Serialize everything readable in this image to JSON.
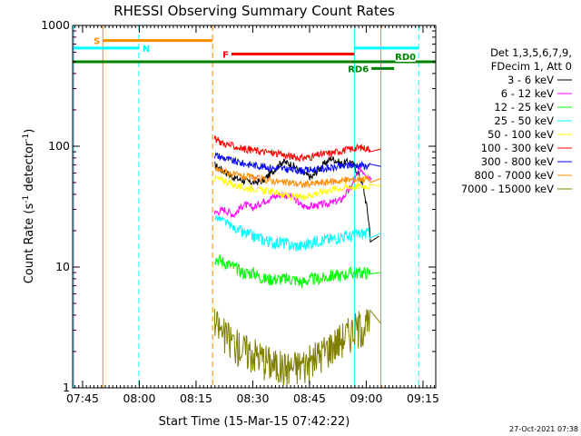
{
  "chart_data": {
    "type": "line",
    "title": "RHESSI Observing Summary Count Rates",
    "xlabel": "Start Time (15-Mar-15 07:42:22)",
    "ylabel_main": "Count Rate (s",
    "ylabel_sup": "-1",
    "ylabel_mid": " detector",
    "ylabel_sup2": "-1",
    "ylabel_end": ")",
    "yscale": "log",
    "ylim": [
      1,
      1000
    ],
    "xlim_minutes": [
      0,
      96
    ],
    "x_ticks": [
      {
        "min": 2.63,
        "label": "07:45"
      },
      {
        "min": 17.63,
        "label": "08:00"
      },
      {
        "min": 32.63,
        "label": "08:15"
      },
      {
        "min": 47.63,
        "label": "08:30"
      },
      {
        "min": 62.63,
        "label": "08:45"
      },
      {
        "min": 77.63,
        "label": "09:00"
      },
      {
        "min": 92.63,
        "label": "09:15"
      }
    ],
    "y_ticks": [
      {
        "value": 1,
        "label": "1"
      },
      {
        "value": 10,
        "label": "10"
      },
      {
        "value": 100,
        "label": "100"
      },
      {
        "value": 1000,
        "label": "1000"
      }
    ],
    "legend_header": [
      "Det 1,3,5,6,7,9,",
      "FDecim 1, Att 0"
    ],
    "timestamp": "27-Oct-2021 07:38",
    "data_start_min": 37.5,
    "data_end_min": 78.7,
    "series": [
      {
        "name": "3 - 6 keV",
        "color": "#000000",
        "end_min": 81.0,
        "values": [
          70,
          62,
          55,
          52,
          50,
          52,
          62,
          75,
          70,
          60,
          55,
          68,
          80,
          72,
          75,
          55,
          18
        ]
      },
      {
        "name": "6 - 12 keV",
        "color": "#ff00ff",
        "end_min": 79.0,
        "values": [
          28,
          30,
          27,
          33,
          31,
          35,
          38,
          40,
          38,
          32,
          32,
          33,
          34,
          36,
          45,
          65,
          55
        ]
      },
      {
        "name": "12 - 25 keV",
        "color": "#00ff00",
        "end_min": 81.5,
        "values": [
          12,
          11,
          10,
          9,
          9,
          8,
          8,
          8,
          8,
          7.5,
          8,
          8,
          8.5,
          8.5,
          9,
          9,
          9
        ]
      },
      {
        "name": "25 - 50 keV",
        "color": "#00ffff",
        "end_min": 81.5,
        "values": [
          26,
          24,
          21,
          19,
          18,
          17,
          16,
          16,
          15,
          15,
          16,
          17,
          17,
          18,
          18,
          19,
          19
        ]
      },
      {
        "name": "50 - 100 keV",
        "color": "#ffff00",
        "end_min": 81.5,
        "values": [
          55,
          52,
          48,
          45,
          45,
          43,
          42,
          40,
          38,
          38,
          40,
          42,
          44,
          45,
          46,
          47,
          47
        ]
      },
      {
        "name": "100 - 300 keV",
        "color": "#ff0000",
        "end_min": 81.5,
        "values": [
          115,
          105,
          100,
          95,
          93,
          90,
          88,
          85,
          82,
          80,
          82,
          86,
          88,
          92,
          95,
          98,
          95
        ]
      },
      {
        "name": "300 - 800 keV",
        "color": "#0000ff",
        "end_min": 81.5,
        "values": [
          85,
          80,
          75,
          72,
          70,
          68,
          66,
          65,
          64,
          63,
          64,
          65,
          66,
          68,
          70,
          70,
          68
        ]
      },
      {
        "name": "800 - 7000 keV",
        "color": "#ff8c00",
        "end_min": 81.5,
        "values": [
          65,
          62,
          58,
          56,
          55,
          53,
          52,
          50,
          50,
          48,
          49,
          50,
          51,
          52,
          53,
          54,
          54
        ]
      },
      {
        "name": "7000 - 15000 keV",
        "color": "#808000",
        "end_min": 81.5,
        "values": [
          3.5,
          2.8,
          2.4,
          2.1,
          2.0,
          1.8,
          1.6,
          1.5,
          1.5,
          1.6,
          1.7,
          2.0,
          2.3,
          2.6,
          3.0,
          3.3,
          3.4
        ]
      }
    ],
    "flag_bars": [
      {
        "name": "S",
        "color": "#ff8c00",
        "y": 750,
        "x0": 8.0,
        "x1": 37.0,
        "label_side": "left"
      },
      {
        "name": "N",
        "color": "#00ffff",
        "y": 650,
        "x0": 0.0,
        "x1": 17.5,
        "label_side": "right"
      },
      {
        "name": "F",
        "color": "#ff0000",
        "y": 580,
        "x0": 42.0,
        "x1": 74.5,
        "label_side": "left"
      },
      {
        "name": "",
        "color": "#00ffff",
        "y": 650,
        "x0": 74.5,
        "x1": 91.5,
        "label_side": "none"
      },
      {
        "name": "RD0",
        "color": "#008000",
        "y": 500,
        "x0": 0.0,
        "x1": 96.0,
        "label_side": "inline"
      },
      {
        "name": "RD6",
        "color": "#008000",
        "y": 440,
        "x0": 79.0,
        "x1": 85.0,
        "label_side": "left"
      }
    ],
    "vlines": [
      {
        "min": 0.3,
        "color": "#00ffff",
        "style": "solid"
      },
      {
        "min": 8.0,
        "color": "#ff8c00",
        "style": "solid"
      },
      {
        "min": 17.5,
        "color": "#00ffff",
        "style": "dashed"
      },
      {
        "min": 37.0,
        "color": "#ff8c00",
        "style": "dashed"
      },
      {
        "min": 74.5,
        "color": "#00ffff",
        "style": "solid"
      },
      {
        "min": 81.5,
        "color": "#ff8c00",
        "style": "solid"
      },
      {
        "min": 91.5,
        "color": "#00ffff",
        "style": "dashed"
      }
    ]
  }
}
